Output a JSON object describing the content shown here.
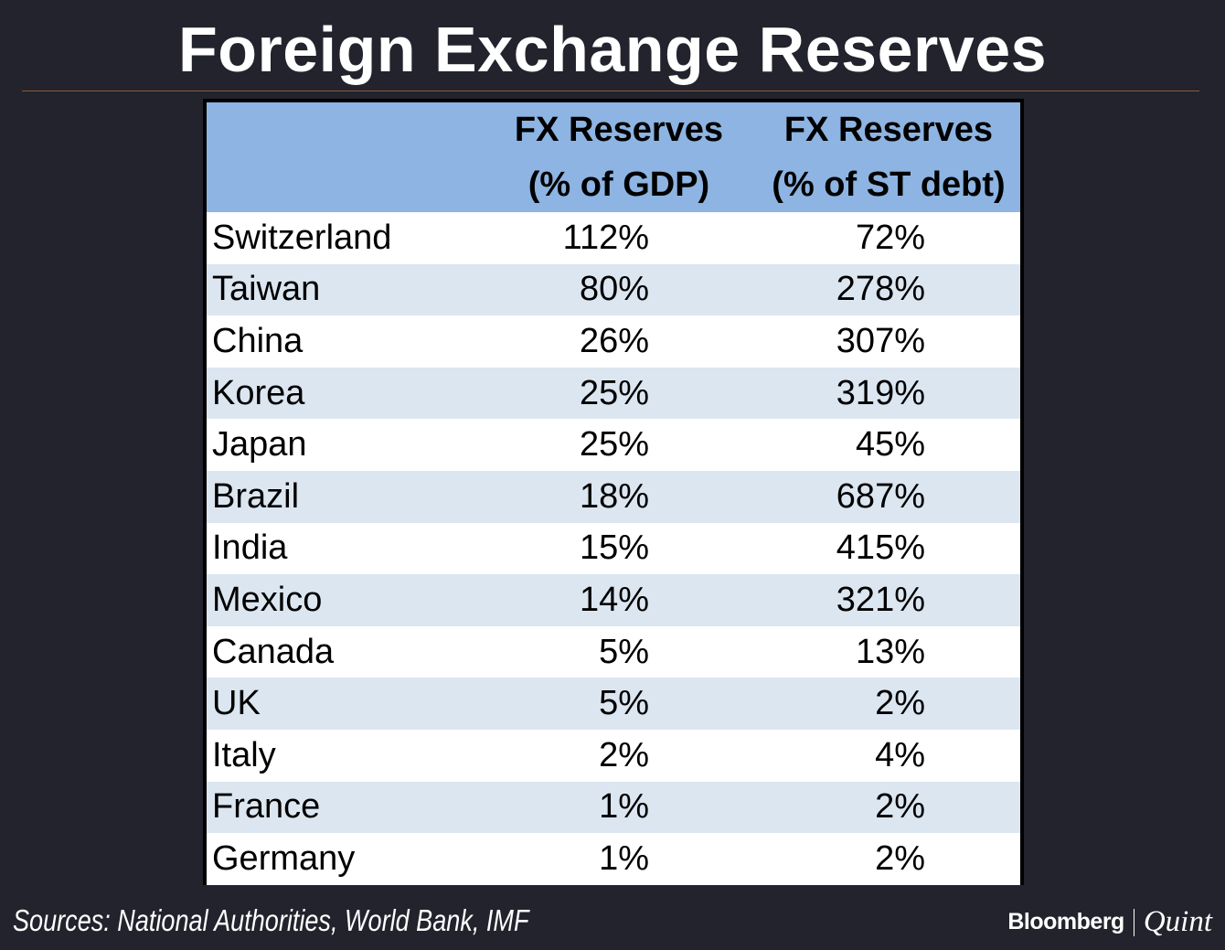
{
  "title": "Foreign Exchange Reserves",
  "source": "Sources: National Authorities, World Bank, IMF",
  "logo": {
    "part1": "Bloomberg",
    "part2": "Quint"
  },
  "chart_data": {
    "type": "table",
    "title": "Foreign Exchange Reserves",
    "columns": [
      {
        "line1": "",
        "line2": ""
      },
      {
        "line1": "FX Reserves",
        "line2": "(% of GDP)"
      },
      {
        "line1": "FX Reserves",
        "line2": "(% of ST debt)"
      }
    ],
    "rows": [
      {
        "country": "Switzerland",
        "gdp": "112%",
        "debt": "72%"
      },
      {
        "country": "Taiwan",
        "gdp": "80%",
        "debt": "278%"
      },
      {
        "country": "China",
        "gdp": "26%",
        "debt": "307%"
      },
      {
        "country": "Korea",
        "gdp": "25%",
        "debt": "319%"
      },
      {
        "country": "Japan",
        "gdp": "25%",
        "debt": "45%"
      },
      {
        "country": "Brazil",
        "gdp": "18%",
        "debt": "687%"
      },
      {
        "country": "India",
        "gdp": "15%",
        "debt": "415%"
      },
      {
        "country": "Mexico",
        "gdp": "14%",
        "debt": "321%"
      },
      {
        "country": "Canada",
        "gdp": "5%",
        "debt": "13%"
      },
      {
        "country": "UK",
        "gdp": "5%",
        "debt": "2%"
      },
      {
        "country": "Italy",
        "gdp": "2%",
        "debt": "4%"
      },
      {
        "country": "France",
        "gdp": "1%",
        "debt": "2%"
      },
      {
        "country": "Germany",
        "gdp": "1%",
        "debt": "2%"
      }
    ],
    "header_color": "#8db4e2",
    "band_colors": [
      "#ffffff",
      "#dce6f1"
    ]
  }
}
